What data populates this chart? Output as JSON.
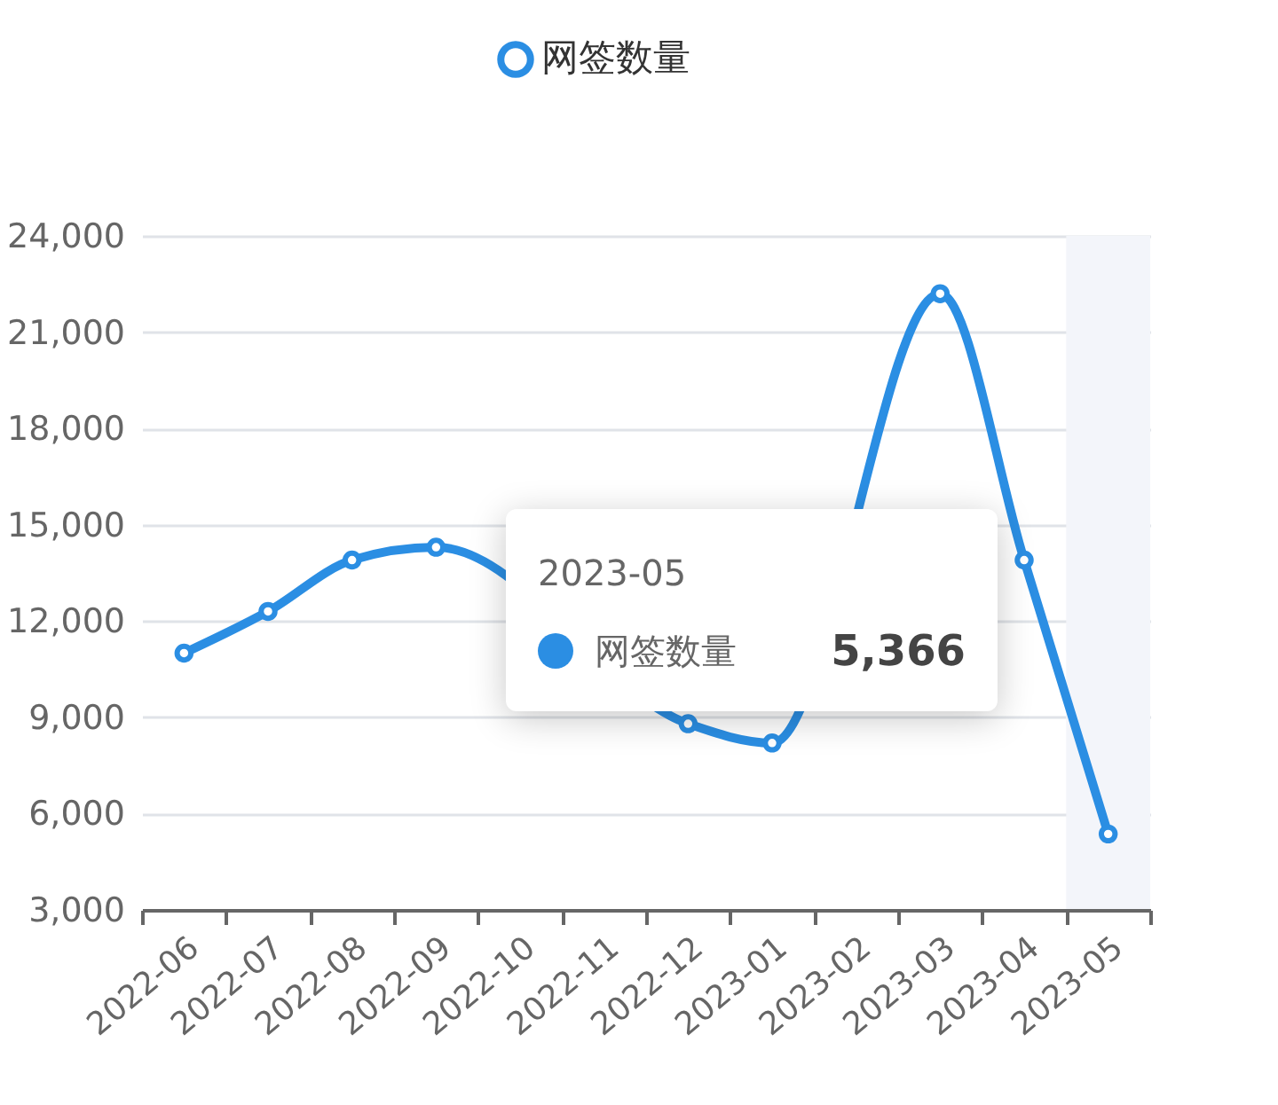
{
  "chart_data": {
    "type": "line",
    "categories": [
      "2022-06",
      "2022-07",
      "2022-08",
      "2022-09",
      "2022-10",
      "2022-11",
      "2022-12",
      "2023-01",
      "2023-02",
      "2023-03",
      "2023-04",
      "2023-05"
    ],
    "series": [
      {
        "name": "网签数量",
        "color": "#2b8ee3",
        "values": [
          11000,
          12300,
          13900,
          14300,
          null,
          null,
          8800,
          8200,
          null,
          22200,
          13900,
          5366
        ]
      }
    ],
    "ylim": [
      3000,
      24000
    ],
    "yticks": [
      {
        "value": 3000,
        "label": "3,000"
      },
      {
        "value": 6000,
        "label": "6,000"
      },
      {
        "value": 9000,
        "label": "9,000"
      },
      {
        "value": 12000,
        "label": "12,000"
      },
      {
        "value": 15000,
        "label": "15,000"
      },
      {
        "value": 18000,
        "label": "18,000"
      },
      {
        "value": 21000,
        "label": "21,000"
      },
      {
        "value": 24000,
        "label": "24,000"
      }
    ],
    "grid": "y",
    "legend": "top",
    "marker": "circle",
    "line_style": "solid",
    "bands": [
      {
        "axis": "x",
        "from": "2023-05",
        "to": "2023-05",
        "color": "#f3f5fa"
      }
    ],
    "annotations": [
      "2023-05",
      "网签数量",
      "5,366"
    ]
  }
}
